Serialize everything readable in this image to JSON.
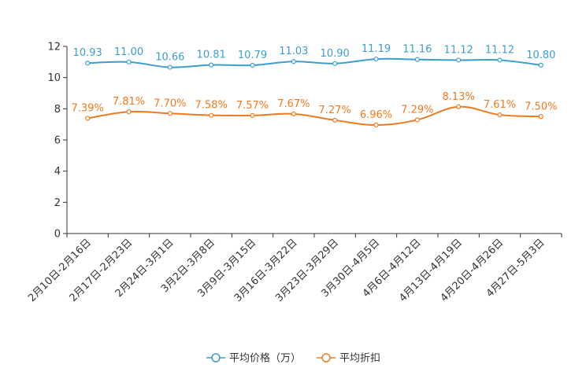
{
  "chart_data": {
    "type": "line",
    "title": "",
    "xlabel": "",
    "ylabel": "",
    "ylim": [
      0,
      12
    ],
    "yticks": [
      0,
      2,
      4,
      6,
      8,
      10,
      12
    ],
    "grid": false,
    "legend_position": "bottom-center",
    "categories": [
      "2月10日-2月16日",
      "2月17日-2月23日",
      "2月24日-3月1日",
      "3月2日-3月8日",
      "3月9日-3月15日",
      "3月16日-3月22日",
      "3月23日-3月29日",
      "3月30日-4月5日",
      "4月6日-4月12日",
      "4月13日-4月19日",
      "4月20日-4月26日",
      "4月27日-5月3日"
    ],
    "series": [
      {
        "name": "平均价格（万）",
        "color": "#3c9dd0",
        "values": [
          10.93,
          11.0,
          10.66,
          10.81,
          10.79,
          11.03,
          10.9,
          11.19,
          11.16,
          11.12,
          11.12,
          10.8
        ],
        "labels": [
          "10.93",
          "11.00",
          "10.66",
          "10.81",
          "10.79",
          "11.03",
          "10.90",
          "11.19",
          "11.16",
          "11.12",
          "11.12",
          "10.80"
        ]
      },
      {
        "name": "平均折扣",
        "color": "#f07a1e",
        "values": [
          7.39,
          7.81,
          7.7,
          7.58,
          7.57,
          7.67,
          7.27,
          6.96,
          7.29,
          8.13,
          7.61,
          7.5
        ],
        "labels": [
          "7.39%",
          "7.81%",
          "7.70%",
          "7.58%",
          "7.57%",
          "7.67%",
          "7.27%",
          "6.96%",
          "7.29%",
          "8.13%",
          "7.61%",
          "7.50%"
        ]
      }
    ]
  }
}
